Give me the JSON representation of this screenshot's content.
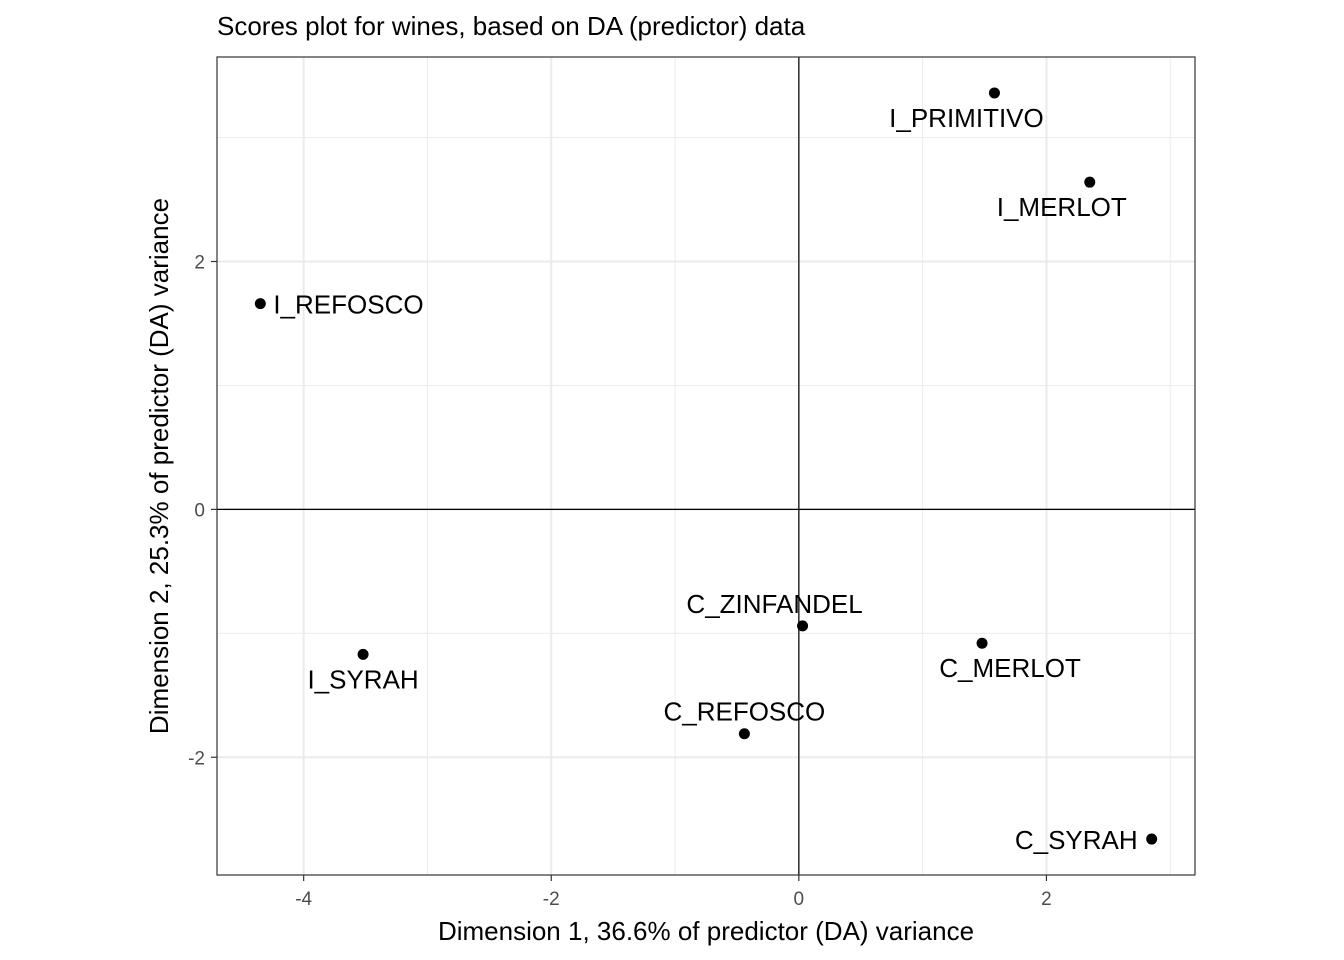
{
  "chart_data": {
    "type": "scatter",
    "title": "Scores plot for wines, based on DA (predictor) data",
    "xlabel": "Dimension 1, 36.6% of predictor (DA) variance",
    "ylabel": "Dimension 2, 25.3% of predictor (DA) variance",
    "xlim": [
      -4.7,
      3.2
    ],
    "ylim": [
      -2.95,
      3.65
    ],
    "xticks": [
      -4,
      -2,
      0,
      2
    ],
    "yticks": [
      -2,
      0,
      2
    ],
    "xtick_labels": [
      "-4",
      "-2",
      "0",
      "2"
    ],
    "ytick_labels": [
      "-2",
      "0",
      "2"
    ],
    "grid": true,
    "reference_lines": {
      "x": 0,
      "y": 0
    },
    "points": [
      {
        "label": "I_PRIMITIVO",
        "x": 1.58,
        "y": 3.36,
        "label_pos": "below-left"
      },
      {
        "label": "I_MERLOT",
        "x": 2.35,
        "y": 2.64,
        "label_pos": "below-left"
      },
      {
        "label": "I_REFOSCO",
        "x": -4.35,
        "y": 1.66,
        "label_pos": "right"
      },
      {
        "label": "I_SYRAH",
        "x": -3.52,
        "y": -1.17,
        "label_pos": "below"
      },
      {
        "label": "C_ZINFANDEL",
        "x": 0.03,
        "y": -0.94,
        "label_pos": "above-left"
      },
      {
        "label": "C_MERLOT",
        "x": 1.48,
        "y": -1.08,
        "label_pos": "below-right"
      },
      {
        "label": "C_REFOSCO",
        "x": -0.44,
        "y": -1.81,
        "label_pos": "above"
      },
      {
        "label": "C_SYRAH",
        "x": 2.85,
        "y": -2.66,
        "label_pos": "left"
      }
    ]
  }
}
